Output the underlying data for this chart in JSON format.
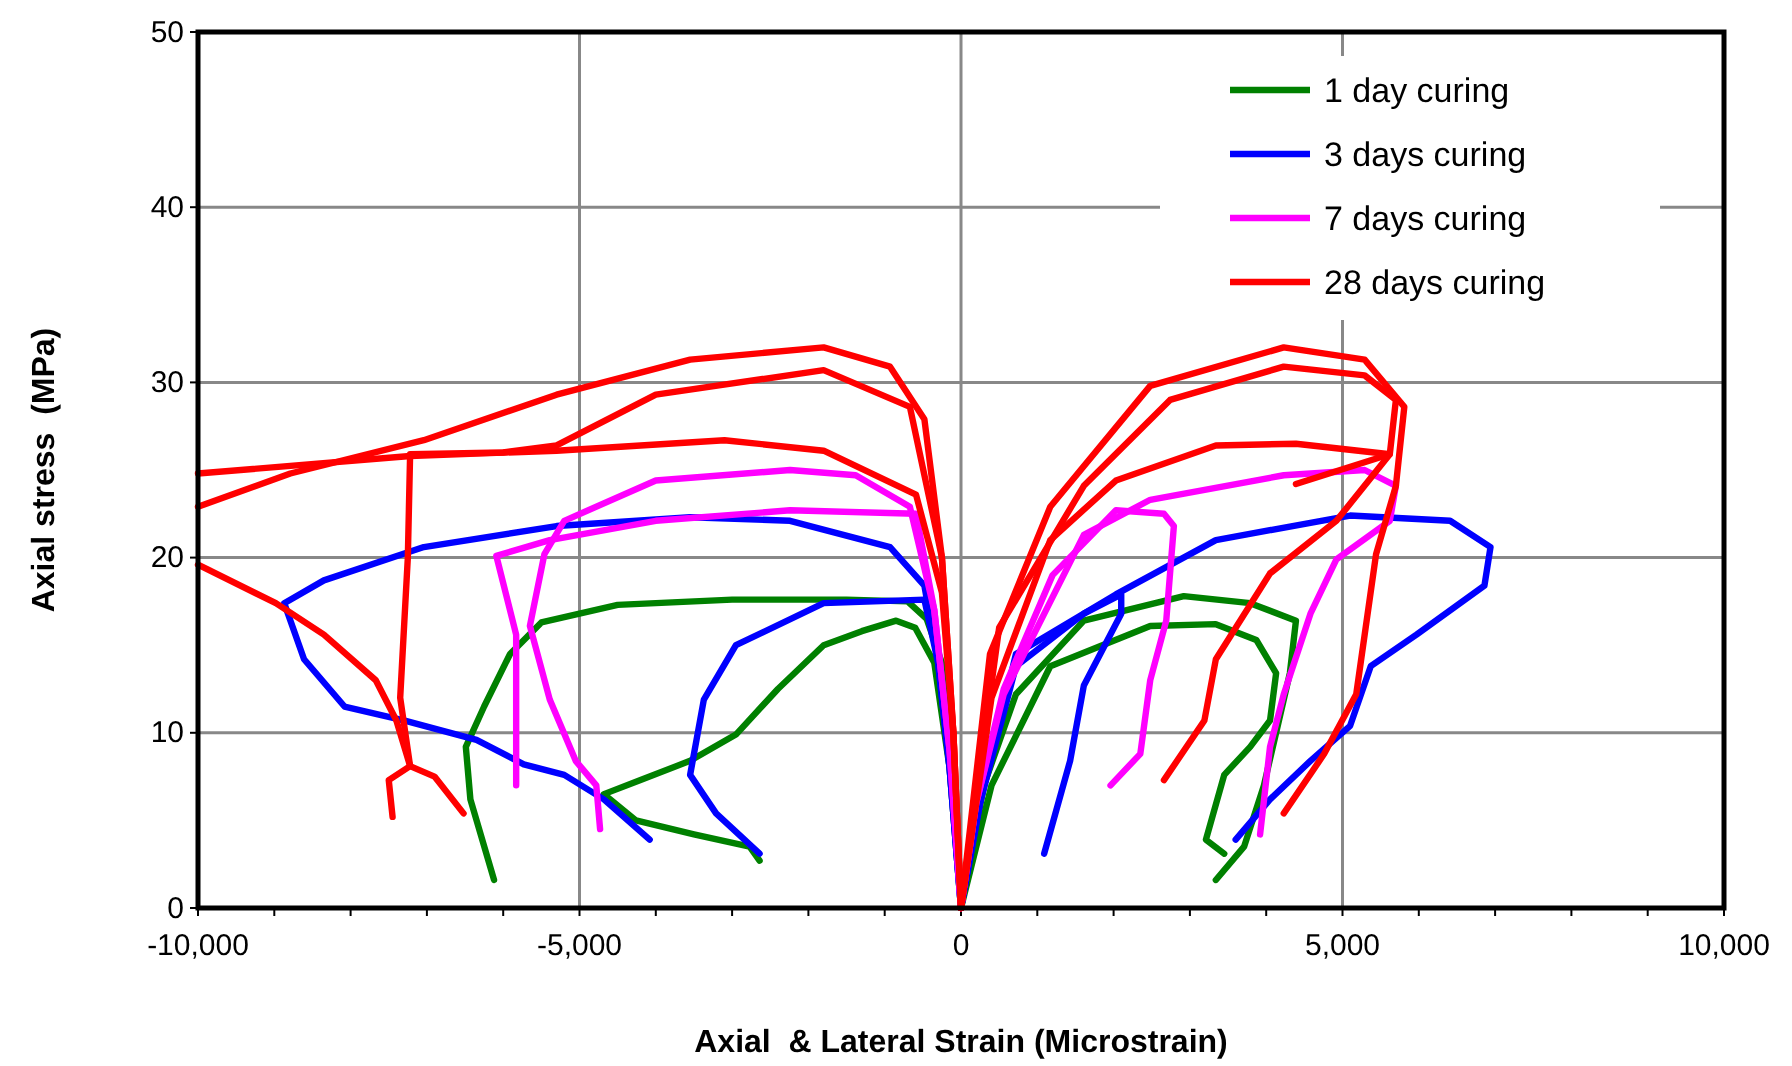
{
  "chart_data": {
    "type": "line",
    "xlabel": "Axial  & Lateral Strain (Microstrain)",
    "ylabel": "Axial stress  (MPa)",
    "xlim": [
      -10000,
      10000
    ],
    "ylim": [
      0,
      50
    ],
    "xticks": [
      {
        "value": -10000,
        "label": "-10,000"
      },
      {
        "value": -9000,
        "label": null
      },
      {
        "value": -8000,
        "label": null
      },
      {
        "value": -7000,
        "label": null
      },
      {
        "value": -6000,
        "label": null
      },
      {
        "value": -5000,
        "label": "-5,000"
      },
      {
        "value": -4000,
        "label": null
      },
      {
        "value": -3000,
        "label": null
      },
      {
        "value": -2000,
        "label": null
      },
      {
        "value": -1000,
        "label": null
      },
      0,
      {
        "value": 1000,
        "label": null
      },
      {
        "value": 2000,
        "label": null
      },
      {
        "value": 3000,
        "label": null
      },
      {
        "value": 4000,
        "label": null
      },
      {
        "value": 5000,
        "label": "5,000"
      },
      {
        "value": 6000,
        "label": null
      },
      {
        "value": 7000,
        "label": null
      },
      {
        "value": 8000,
        "label": null
      },
      {
        "value": 9000,
        "label": null
      },
      {
        "value": 10000,
        "label": "10,000"
      }
    ],
    "yticks": [
      0,
      10,
      20,
      30,
      40,
      50
    ],
    "grid": true,
    "legend": "top right",
    "line_style": "solid",
    "series": [
      {
        "name": "1 day curing",
        "color": "#008000",
        "x": [
          0,
          -100,
          -250,
          -450,
          -700,
          -1500,
          -3000,
          -4500,
          -5500,
          -5910,
          -6250,
          -6490,
          -6430,
          -6120
        ],
        "values": [
          0,
          8,
          14,
          16.5,
          17.5,
          17.6,
          17.6,
          17.3,
          16.3,
          14.5,
          11.5,
          9.2,
          6.2,
          1.6
        ]
      },
      {
        "color": "#008000",
        "x": [
          0,
          -150,
          -350,
          -600,
          -850,
          -1300,
          -1800,
          -2400,
          -2950,
          -3550,
          -4200,
          -4680,
          -4260,
          -3500,
          -2770,
          -2640
        ],
        "values": [
          0,
          8,
          14,
          16,
          16.4,
          15.8,
          15,
          12.5,
          9.9,
          8.4,
          7.3,
          6.5,
          5,
          4.2,
          3.5,
          2.7
        ]
      },
      {
        "color": "#008000",
        "x": [
          0,
          300,
          720,
          1610,
          2920,
          3790,
          4390,
          4310,
          4130,
          3970,
          3710,
          3340
        ],
        "values": [
          0,
          7,
          12.2,
          16.4,
          17.8,
          17.4,
          16.4,
          13.4,
          10,
          7,
          3.5,
          1.6
        ]
      },
      {
        "color": "#008000",
        "x": [
          0,
          400,
          1170,
          2480,
          3340,
          3870,
          4130,
          4050,
          3790,
          3450,
          3210,
          3450
        ],
        "values": [
          0,
          7,
          13.8,
          16.1,
          16.2,
          15.3,
          13.4,
          10.7,
          9.2,
          7.6,
          3.9,
          3.1
        ]
      },
      {
        "name": "3 days curing",
        "color": "#0000ff",
        "x": [
          0,
          -150,
          -300,
          -480,
          -930,
          -2240,
          -3550,
          -5300,
          -7040,
          -8350,
          -8870,
          -8610,
          -8080,
          -7290,
          -6350,
          -5730,
          -5200,
          -4680,
          -4080
        ],
        "values": [
          0,
          8,
          14,
          18.4,
          20.6,
          22.1,
          22.3,
          21.8,
          20.6,
          18.7,
          17.4,
          14.2,
          11.5,
          10.7,
          9.6,
          8.2,
          7.6,
          6.2,
          3.9
        ]
      },
      {
        "color": "#0000ff",
        "x": [
          0,
          -150,
          -300,
          -480,
          -1800,
          -2950,
          -3370,
          -3550,
          -3210,
          -2640
        ],
        "values": [
          0,
          8,
          14,
          17.6,
          17.4,
          15,
          11.9,
          7.6,
          5.4,
          3.1
        ]
      },
      {
        "color": "#0000ff",
        "x": [
          0,
          250,
          720,
          2030,
          3340,
          5100,
          6410,
          6940,
          6860,
          5970,
          5370,
          5100,
          4580,
          4050,
          3600
        ],
        "values": [
          0,
          6,
          14.5,
          17.9,
          21,
          22.4,
          22.1,
          20.6,
          18.4,
          15.6,
          13.8,
          10.4,
          8.4,
          6.2,
          3.9
        ]
      },
      {
        "color": "#0000ff",
        "x": [
          0,
          250,
          720,
          1610,
          2100,
          2100,
          1610,
          1430,
          1090
        ],
        "values": [
          0,
          6,
          13.8,
          16.8,
          17.9,
          16.8,
          12.7,
          8.4,
          3.1
        ]
      },
      {
        "name": "7 days curing",
        "color": "#ff00ff",
        "x": [
          0,
          -150,
          -350,
          -670,
          -1380,
          -2240,
          -4000,
          -5200,
          -5460,
          -5650,
          -5390,
          -5050,
          -4780,
          -4730
        ],
        "values": [
          0,
          9,
          17,
          22.9,
          24.7,
          25,
          24.4,
          22.1,
          20.2,
          16.1,
          11.9,
          8.4,
          7,
          4.5
        ]
      },
      {
        "color": "#ff00ff",
        "x": [
          0,
          -150,
          -350,
          -590,
          -2240,
          -4000,
          -5390,
          -6090,
          -5830,
          -5830
        ],
        "values": [
          0,
          9,
          17,
          22.5,
          22.7,
          22.1,
          21,
          20.1,
          15.6,
          7
        ]
      },
      {
        "color": "#ff00ff",
        "x": [
          0,
          200,
          560,
          1610,
          2480,
          4230,
          5290,
          5700,
          5620,
          4920,
          4580,
          4230,
          4050,
          3920
        ],
        "values": [
          0,
          6,
          12.2,
          21.3,
          23.3,
          24.7,
          25,
          24.1,
          22.1,
          19.9,
          16.8,
          12.2,
          9.2,
          4.2
        ]
      },
      {
        "color": "#ff00ff",
        "x": [
          0,
          200,
          560,
          1200,
          2030,
          2660,
          2790,
          2690,
          2480,
          2350,
          1960
        ],
        "values": [
          0,
          6,
          12.5,
          19,
          22.7,
          22.5,
          21.8,
          16.4,
          13,
          8.8,
          7
        ]
      },
      {
        "name": "28 days curing",
        "color": "#ff0000",
        "x": [
          0,
          -100,
          -250,
          -480,
          -930,
          -1800,
          -3550,
          -5300,
          -7040,
          -8790,
          -10000
        ],
        "values": [
          0,
          10,
          20,
          27.9,
          30.9,
          32,
          31.3,
          29.3,
          26.7,
          24.8,
          22.9
        ]
      },
      {
        "color": "#ff0000",
        "x": [
          0,
          -100,
          -250,
          -670,
          -1800,
          -4000,
          -5300,
          -6000,
          -7220,
          -7250,
          -7350,
          -7220,
          -7500,
          -7450
        ],
        "values": [
          0,
          10,
          20,
          28.6,
          30.7,
          29.3,
          26.4,
          26,
          25.9,
          20,
          12,
          8.1,
          7.3,
          5.2
        ]
      },
      {
        "color": "#ff0000",
        "x": [
          0,
          -100,
          -250,
          -590,
          -1800,
          -3100,
          -5300,
          -7220,
          -10000
        ],
        "values": [
          0,
          10,
          18,
          23.6,
          26.1,
          26.7,
          26.1,
          25.8,
          24.8
        ]
      },
      {
        "color": "#ff0000",
        "x": [
          -10000,
          -8980,
          -8350,
          -7670,
          -7400,
          -7220,
          -6900,
          -6520
        ],
        "values": [
          19.6,
          17.4,
          15.6,
          13,
          10.7,
          8.1,
          7.5,
          5.4
        ]
      },
      {
        "color": "#ff0000",
        "x": [
          0,
          380,
          1170,
          2480,
          4230,
          5290,
          5810,
          5700,
          5440,
          5180,
          4760,
          4230
        ],
        "values": [
          0,
          14.5,
          22.9,
          29.8,
          32,
          31.3,
          28.6,
          24.1,
          20.2,
          12.2,
          8.8,
          5.4
        ]
      },
      {
        "color": "#ff0000",
        "x": [
          0,
          500,
          1610,
          2740,
          4230,
          5290,
          5700,
          5620,
          4390
        ],
        "values": [
          0,
          16,
          24.1,
          29,
          30.9,
          30.4,
          29,
          25.9,
          24.2
        ]
      },
      {
        "color": "#ff0000",
        "x": [
          0,
          400,
          1170,
          2030,
          3340,
          4390,
          5620,
          4920,
          4050,
          3340,
          3190,
          2660
        ],
        "values": [
          0,
          12,
          21,
          24.4,
          26.4,
          26.5,
          25.9,
          22.1,
          19.1,
          14.2,
          10.7,
          7.3
        ]
      }
    ]
  }
}
